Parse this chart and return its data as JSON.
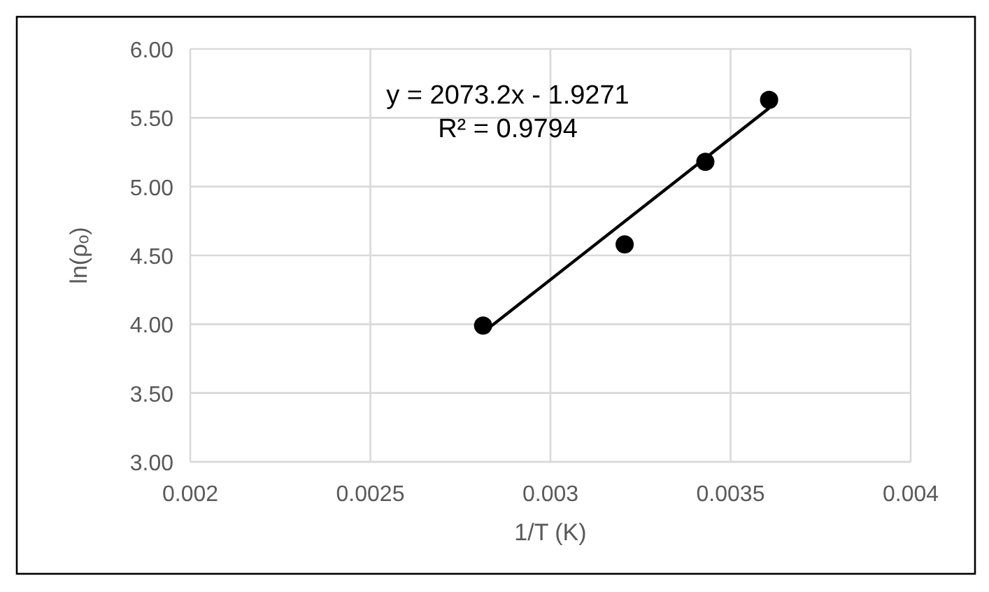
{
  "chart_data": {
    "type": "scatter",
    "xlabel": "1/T  (K)",
    "ylabel": "ln(ρₒ)",
    "series": [
      {
        "color": "#000000",
        "x": [
          0.002813,
          0.003206,
          0.00343,
          0.003607
        ],
        "values": [
          3.99,
          4.58,
          5.18,
          5.63
        ],
        "marker": "circle"
      },
      {
        "type": "line",
        "color": "#000000",
        "x": [
          0.002813,
          0.003607
        ],
        "values": [
          3.94,
          5.57
        ],
        "marker": "none",
        "line_style": "solid"
      }
    ],
    "xlim": [
      0.002,
      0.004
    ],
    "xticks": [
      0.002,
      0.0025,
      0.003,
      0.0035,
      0.004
    ],
    "ylim": [
      3,
      6
    ],
    "yticks": [
      {
        "value": 3,
        "label": "3.00"
      },
      {
        "value": 3.5,
        "label": "3.50"
      },
      {
        "value": 4,
        "label": "4.00"
      },
      {
        "value": 4.5,
        "label": "4.50"
      },
      {
        "value": 5,
        "label": "5.00"
      },
      {
        "value": 5.5,
        "label": "5.50"
      },
      {
        "value": 6,
        "label": "6.00"
      }
    ],
    "grid": true,
    "annotations": [
      "y = 2073.2x - 1.9271",
      "R² = 0.9794"
    ]
  }
}
